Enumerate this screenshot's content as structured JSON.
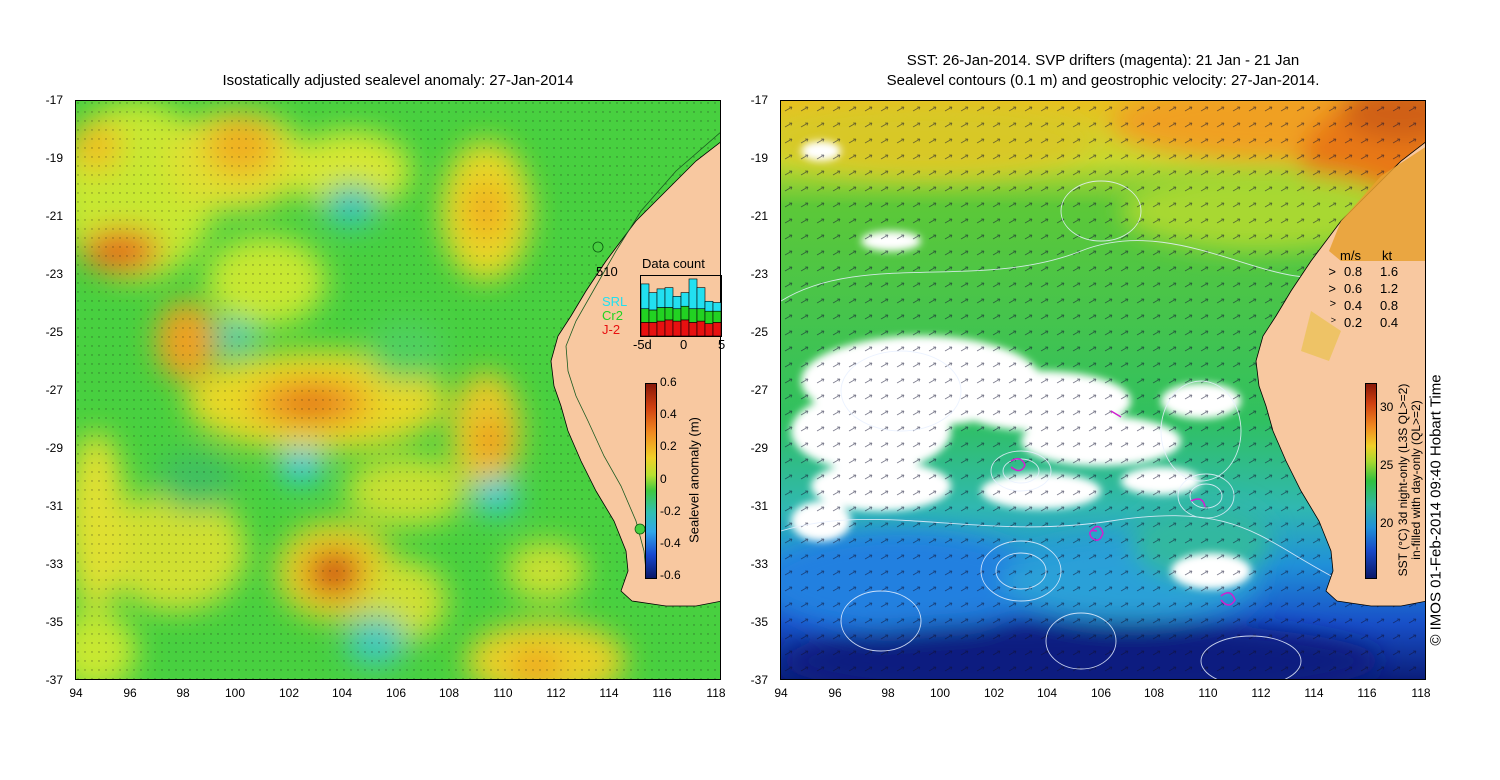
{
  "left_panel": {
    "title": "Isostatically adjusted sealevel anomaly: 27-Jan-2014",
    "y_ticks": [
      "-17",
      "-19",
      "-21",
      "-23",
      "-25",
      "-27",
      "-29",
      "-31",
      "-33",
      "-35",
      "-37"
    ],
    "x_ticks": [
      "94",
      "96",
      "98",
      "100",
      "102",
      "104",
      "106",
      "108",
      "110",
      "112",
      "114",
      "116",
      "118"
    ],
    "colorbar": {
      "label": "Sealevel anomaly (m)",
      "ticks": [
        "0.6",
        "0.4",
        "0.2",
        "0",
        "-0.2",
        "-0.4",
        "-0.6"
      ]
    },
    "data_count": {
      "title": "Data count",
      "max_label": "510",
      "legend": [
        {
          "name": "SRL",
          "color": "#22e0f0"
        },
        {
          "name": "Cr2",
          "color": "#22d222"
        },
        {
          "name": "J-2",
          "color": "#e81010"
        }
      ],
      "x_ticks": [
        "-5d",
        "0",
        "5"
      ],
      "bars": [
        {
          "srl": 0.4,
          "cr2": 0.22,
          "j2": 0.22
        },
        {
          "srl": 0.28,
          "cr2": 0.2,
          "j2": 0.22
        },
        {
          "srl": 0.3,
          "cr2": 0.22,
          "j2": 0.24
        },
        {
          "srl": 0.32,
          "cr2": 0.2,
          "j2": 0.26
        },
        {
          "srl": 0.2,
          "cr2": 0.2,
          "j2": 0.24
        },
        {
          "srl": 0.22,
          "cr2": 0.22,
          "j2": 0.26
        },
        {
          "srl": 0.48,
          "cr2": 0.22,
          "j2": 0.22
        },
        {
          "srl": 0.34,
          "cr2": 0.2,
          "j2": 0.24
        },
        {
          "srl": 0.16,
          "cr2": 0.2,
          "j2": 0.2
        },
        {
          "srl": 0.14,
          "cr2": 0.18,
          "j2": 0.22
        }
      ]
    }
  },
  "right_panel": {
    "title_line1": "SST: 26-Jan-2014. SVP drifters (magenta): 21 Jan - 21 Jan",
    "title_line2": "Sealevel contours (0.1 m) and geostrophic velocity: 27-Jan-2014.",
    "y_ticks": [
      "-17",
      "-19",
      "-21",
      "-23",
      "-25",
      "-27",
      "-29",
      "-31",
      "-33",
      "-35",
      "-37"
    ],
    "x_ticks": [
      "94",
      "96",
      "98",
      "100",
      "102",
      "104",
      "106",
      "108",
      "110",
      "112",
      "114",
      "116",
      "118"
    ],
    "speed_legend": {
      "header_ms": "m/s",
      "header_kt": "kt",
      "rows": [
        {
          "ms": "0.8",
          "kt": "1.6"
        },
        {
          "ms": "0.6",
          "kt": "1.2"
        },
        {
          "ms": "0.4",
          "kt": "0.8"
        },
        {
          "ms": "0.2",
          "kt": "0.4"
        }
      ]
    },
    "colorbar": {
      "label_line1": "SST (°C) 3d night-only (L3S QL>=2)",
      "label_line2": "in-filled with day-only (QL>=2)",
      "ticks": [
        "30",
        "25",
        "20"
      ]
    }
  },
  "footer": {
    "credit": "© IMOS 01-Feb-2014 09:40 Hobart Time"
  },
  "colors": {
    "land": "#f8c8a0",
    "ocean_green": "#2cc830",
    "cloud": "#ffffff",
    "drifter": "#d020d0"
  }
}
